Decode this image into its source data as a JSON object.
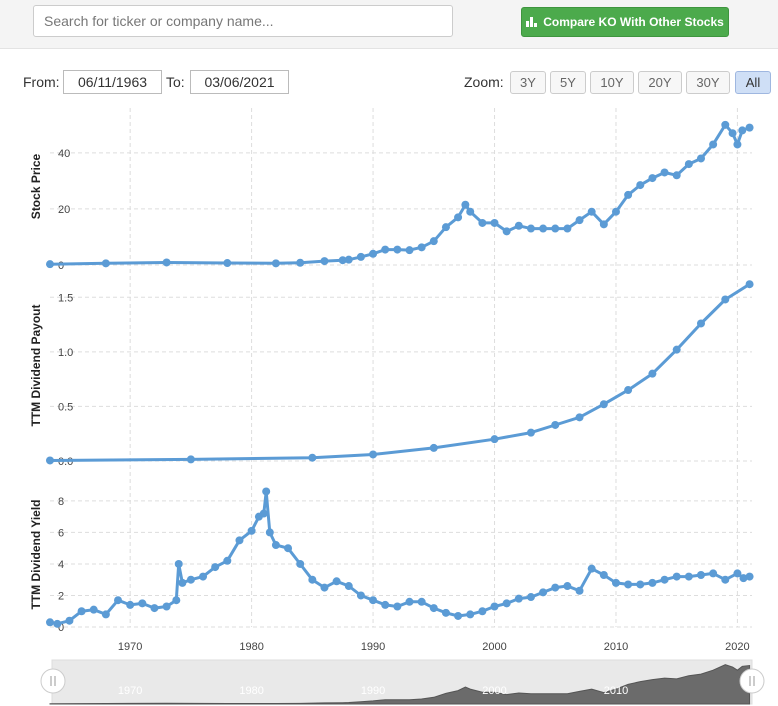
{
  "search": {
    "placeholder": "Search for ticker or company name..."
  },
  "compare_button": {
    "label": "Compare KO With Other Stocks",
    "icon": "bar-chart-icon",
    "color": "#4caa4c"
  },
  "range": {
    "from_label": "From:",
    "from_value": "06/11/1963",
    "to_label": "To:",
    "to_value": "03/06/2021",
    "zoom_label": "Zoom:",
    "zoom_options": [
      "3Y",
      "5Y",
      "10Y",
      "20Y",
      "30Y",
      "All"
    ],
    "zoom_selected": "All"
  },
  "chart_data": {
    "type": "line",
    "series_color": "#5b9bd5",
    "x_range": [
      1963.4,
      2021.2
    ],
    "x_ticks": [
      "1970",
      "1980",
      "1990",
      "2000",
      "2010",
      "2020"
    ],
    "panels": [
      {
        "ylabel": "Stock Price",
        "ylim": [
          0,
          56
        ],
        "y_ticks": [
          "0",
          "20",
          "40"
        ],
        "points": [
          [
            1963.4,
            0.3
          ],
          [
            1968,
            0.6
          ],
          [
            1973,
            0.9
          ],
          [
            1978,
            0.7
          ],
          [
            1982,
            0.6
          ],
          [
            1984,
            0.8
          ],
          [
            1986,
            1.4
          ],
          [
            1987.5,
            1.7
          ],
          [
            1988,
            1.9
          ],
          [
            1989,
            2.9
          ],
          [
            1990,
            4
          ],
          [
            1991,
            5.5
          ],
          [
            1992,
            5.5
          ],
          [
            1993,
            5.3
          ],
          [
            1994,
            6.3
          ],
          [
            1995,
            8.5
          ],
          [
            1996,
            13.5
          ],
          [
            1997,
            17
          ],
          [
            1997.6,
            21.5
          ],
          [
            1998,
            19
          ],
          [
            1999,
            15
          ],
          [
            2000,
            15
          ],
          [
            2001,
            12
          ],
          [
            2002,
            14
          ],
          [
            2003,
            13
          ],
          [
            2004,
            13
          ],
          [
            2005,
            13
          ],
          [
            2006,
            13
          ],
          [
            2007,
            16
          ],
          [
            2008,
            19
          ],
          [
            2009,
            14.5
          ],
          [
            2010,
            19
          ],
          [
            2011,
            25
          ],
          [
            2012,
            28.5
          ],
          [
            2013,
            31
          ],
          [
            2014,
            33
          ],
          [
            2015,
            32
          ],
          [
            2016,
            36
          ],
          [
            2017,
            38
          ],
          [
            2018,
            43
          ],
          [
            2019,
            50
          ],
          [
            2019.6,
            47
          ],
          [
            2020,
            43
          ],
          [
            2020.4,
            48
          ],
          [
            2021,
            49
          ]
        ]
      },
      {
        "ylabel": "TTM Dividend Payout",
        "ylim": [
          0,
          1.75
        ],
        "y_ticks": [
          "0.0",
          "0.5",
          "1.0",
          "1.5"
        ],
        "points": [
          [
            1963.4,
            0.005
          ],
          [
            1975,
            0.015
          ],
          [
            1985,
            0.03
          ],
          [
            1990,
            0.06
          ],
          [
            1995,
            0.12
          ],
          [
            2000,
            0.2
          ],
          [
            2003,
            0.26
          ],
          [
            2005,
            0.33
          ],
          [
            2007,
            0.4
          ],
          [
            2009,
            0.52
          ],
          [
            2011,
            0.65
          ],
          [
            2013,
            0.8
          ],
          [
            2015,
            1.02
          ],
          [
            2017,
            1.26
          ],
          [
            2019,
            1.48
          ],
          [
            2021,
            1.62
          ]
        ]
      },
      {
        "ylabel": "TTM Dividend Yield",
        "ylim": [
          0,
          9.2
        ],
        "y_ticks": [
          "0",
          "2",
          "4",
          "6",
          "8"
        ],
        "points": [
          [
            1963.4,
            0.3
          ],
          [
            1964,
            0.2
          ],
          [
            1965,
            0.4
          ],
          [
            1966,
            1
          ],
          [
            1967,
            1.1
          ],
          [
            1968,
            0.8
          ],
          [
            1969,
            1.7
          ],
          [
            1970,
            1.4
          ],
          [
            1971,
            1.5
          ],
          [
            1972,
            1.2
          ],
          [
            1973,
            1.3
          ],
          [
            1973.8,
            1.7
          ],
          [
            1974,
            4
          ],
          [
            1974.3,
            2.8
          ],
          [
            1975,
            3
          ],
          [
            1976,
            3.2
          ],
          [
            1977,
            3.8
          ],
          [
            1978,
            4.2
          ],
          [
            1979,
            5.5
          ],
          [
            1980,
            6.1
          ],
          [
            1980.6,
            7
          ],
          [
            1981,
            7.2
          ],
          [
            1981.2,
            8.6
          ],
          [
            1981.5,
            6
          ],
          [
            1982,
            5.2
          ],
          [
            1983,
            5
          ],
          [
            1984,
            4
          ],
          [
            1985,
            3
          ],
          [
            1986,
            2.5
          ],
          [
            1987,
            2.9
          ],
          [
            1988,
            2.6
          ],
          [
            1989,
            2
          ],
          [
            1990,
            1.7
          ],
          [
            1991,
            1.4
          ],
          [
            1992,
            1.3
          ],
          [
            1993,
            1.6
          ],
          [
            1994,
            1.6
          ],
          [
            1995,
            1.2
          ],
          [
            1996,
            0.9
          ],
          [
            1997,
            0.7
          ],
          [
            1998,
            0.8
          ],
          [
            1999,
            1
          ],
          [
            2000,
            1.3
          ],
          [
            2001,
            1.5
          ],
          [
            2002,
            1.8
          ],
          [
            2003,
            1.9
          ],
          [
            2004,
            2.2
          ],
          [
            2005,
            2.5
          ],
          [
            2006,
            2.6
          ],
          [
            2007,
            2.3
          ],
          [
            2008,
            3.7
          ],
          [
            2009,
            3.3
          ],
          [
            2010,
            2.8
          ],
          [
            2011,
            2.7
          ],
          [
            2012,
            2.7
          ],
          [
            2013,
            2.8
          ],
          [
            2014,
            3
          ],
          [
            2015,
            3.2
          ],
          [
            2016,
            3.2
          ],
          [
            2017,
            3.3
          ],
          [
            2018,
            3.4
          ],
          [
            2019,
            3
          ],
          [
            2020,
            3.4
          ],
          [
            2020.5,
            3.1
          ],
          [
            2021,
            3.2
          ]
        ]
      }
    ],
    "navigator": {
      "x_ticks": [
        "1970",
        "1980",
        "1990",
        "2000",
        "2010"
      ]
    }
  }
}
